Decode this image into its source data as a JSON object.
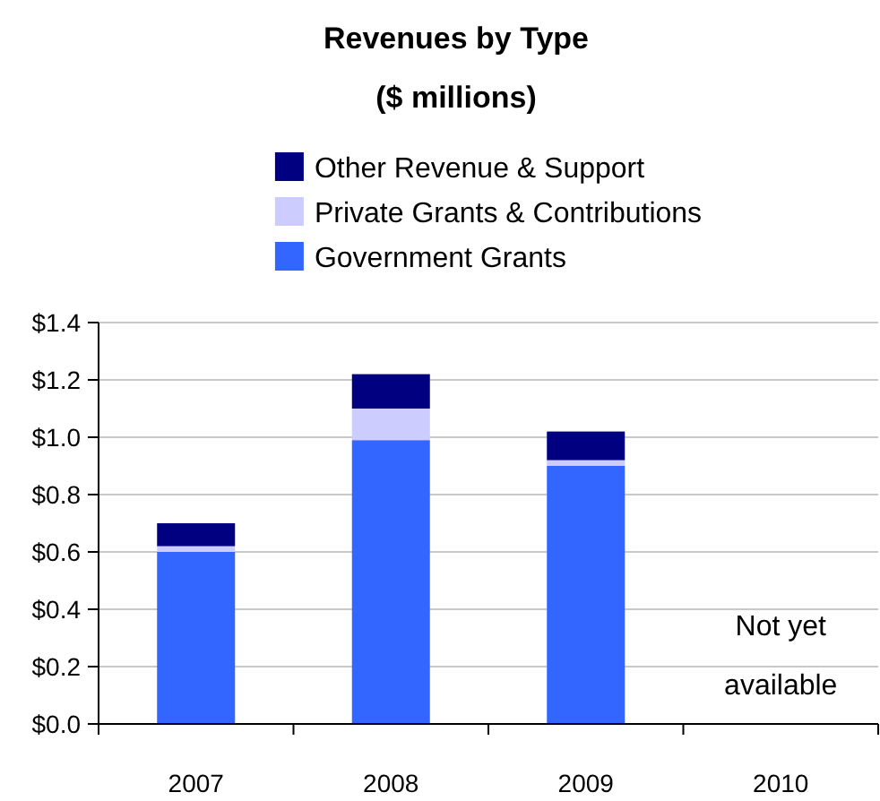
{
  "chart_data": {
    "type": "bar",
    "title": "Revenues by Type",
    "subtitle": "($ millions)",
    "categories": [
      "2007",
      "2008",
      "2009",
      "2010"
    ],
    "series": [
      {
        "name": "Government Grants",
        "color": "#3366ff",
        "values": [
          0.6,
          0.99,
          0.9,
          null
        ]
      },
      {
        "name": "Private Grants & Contributions",
        "color": "#ccccff",
        "values": [
          0.02,
          0.11,
          0.02,
          null
        ]
      },
      {
        "name": "Other Revenue & Support",
        "color": "#000080",
        "values": [
          0.08,
          0.12,
          0.1,
          null
        ]
      }
    ],
    "stacked": true,
    "ylim": [
      0,
      1.4
    ],
    "yticks": [
      {
        "value": 0,
        "label": "$0.0"
      },
      {
        "value": 0.2,
        "label": "$0.2"
      },
      {
        "value": 0.4,
        "label": "$0.4"
      },
      {
        "value": 0.6,
        "label": "$0.6"
      },
      {
        "value": 0.8,
        "label": "$0.8"
      },
      {
        "value": 1.0,
        "label": "$1.0"
      },
      {
        "value": 1.2,
        "label": "$1.2"
      },
      {
        "value": 1.4,
        "label": "$1.4"
      }
    ],
    "grid": "y",
    "legend": "top",
    "annotations": [
      "Not yet available"
    ]
  }
}
